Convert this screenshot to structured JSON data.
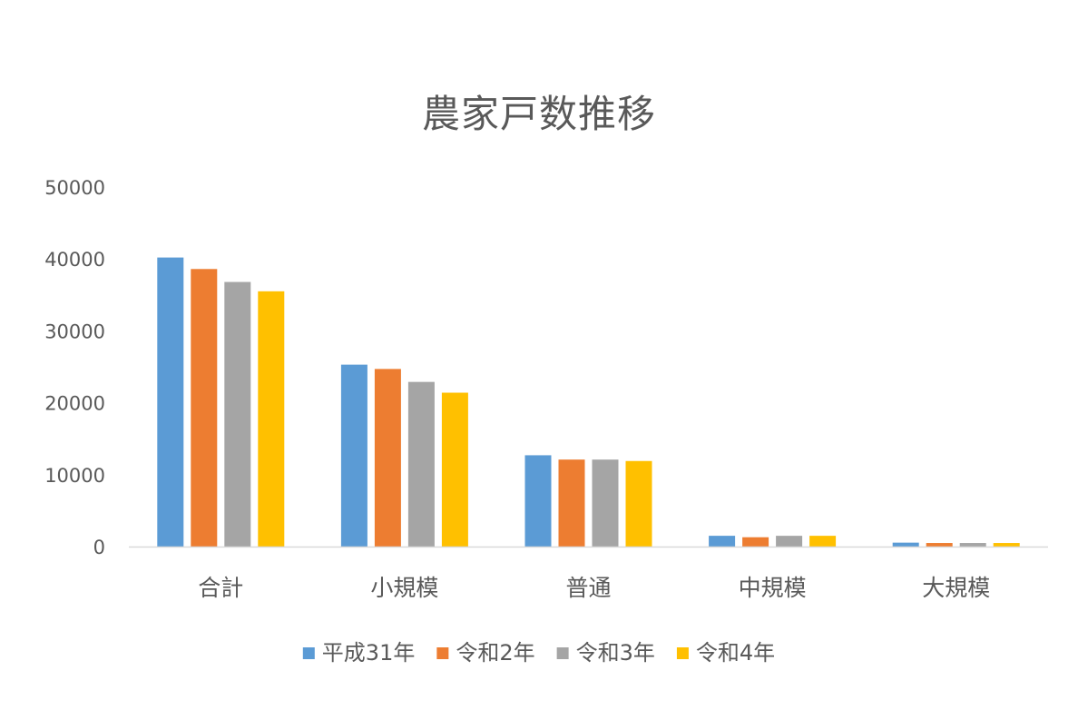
{
  "chart_data": {
    "type": "bar",
    "title": "農家戸数推移",
    "xlabel": "",
    "ylabel": "",
    "ylim": [
      0,
      50000
    ],
    "yticks": [
      0,
      10000,
      20000,
      30000,
      40000,
      50000
    ],
    "grid": false,
    "legend_position": "bottom",
    "categories": [
      "合計",
      "小規模",
      "普通",
      "中規模",
      "大規模"
    ],
    "series": [
      {
        "name": "平成31年",
        "color": "#5B9BD5",
        "values": [
          40200,
          25300,
          12700,
          1500,
          550
        ]
      },
      {
        "name": "令和2年",
        "color": "#ED7D31",
        "values": [
          38600,
          24700,
          12100,
          1300,
          500
        ]
      },
      {
        "name": "令和3年",
        "color": "#A5A5A5",
        "values": [
          36800,
          22900,
          12100,
          1500,
          500
        ]
      },
      {
        "name": "令和4年",
        "color": "#FFC000",
        "values": [
          35500,
          21400,
          11900,
          1500,
          500
        ]
      }
    ]
  }
}
